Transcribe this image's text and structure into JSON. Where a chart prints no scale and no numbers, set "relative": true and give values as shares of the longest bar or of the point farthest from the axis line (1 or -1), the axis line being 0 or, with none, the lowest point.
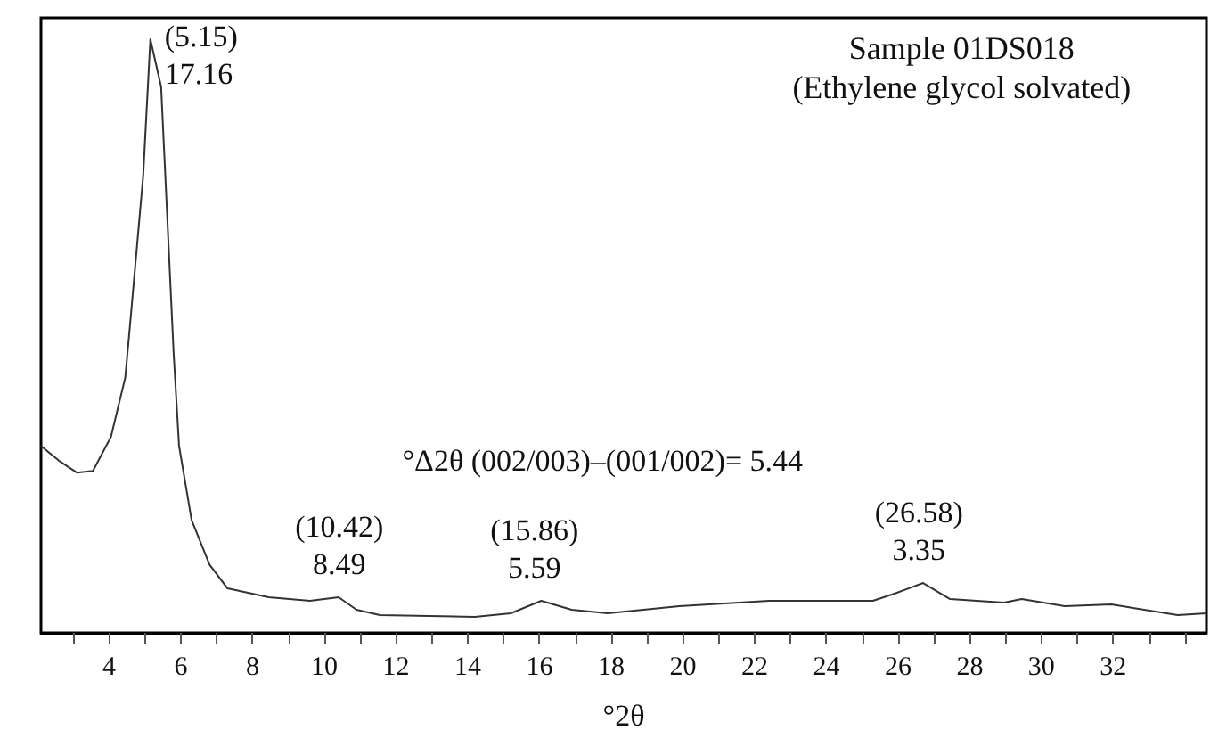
{
  "chart_data": {
    "type": "line",
    "title": "Sample 01DS018",
    "subtitle": "(Ethylene glycol solvated)",
    "xlabel": "°2θ",
    "relative": true,
    "x": [
      2.1,
      2.6,
      3.1,
      3.55,
      4.05,
      4.45,
      4.6,
      4.95,
      5.15,
      5.45,
      5.8,
      5.95,
      6.3,
      6.8,
      7.3,
      8.45,
      9.6,
      10.4,
      10.9,
      11.55,
      14.2,
      15.2,
      16.05,
      16.9,
      17.9,
      19.9,
      22.4,
      25.3,
      25.9,
      26.7,
      27.45,
      28.95,
      29.45,
      30.65,
      31.95,
      33.8,
      34.6
    ],
    "series": [
      {
        "color": "#333333",
        "values": [
          0.315,
          0.29,
          0.27,
          0.273,
          0.33,
          0.43,
          0.53,
          0.77,
          1,
          0.92,
          0.47,
          0.315,
          0.19,
          0.115,
          0.075,
          0.06,
          0.054,
          0.06,
          0.039,
          0.03,
          0.027,
          0.033,
          0.054,
          0.039,
          0.033,
          0.045,
          0.054,
          0.054,
          0.066,
          0.084,
          0.057,
          0.051,
          0.057,
          0.045,
          0.048,
          0.03,
          0.033
        ]
      }
    ],
    "xlim": [
      2.1,
      34.6
    ],
    "xticks": [
      {
        "value": 3,
        "label": null
      },
      4,
      {
        "value": 5,
        "label": null
      },
      6,
      {
        "value": 7,
        "label": null
      },
      8,
      {
        "value": 9,
        "label": null
      },
      10,
      {
        "value": 11,
        "label": null
      },
      12,
      {
        "value": 13,
        "label": null
      },
      14,
      {
        "value": 15,
        "label": null
      },
      16,
      {
        "value": 17,
        "label": null
      },
      18,
      {
        "value": 19,
        "label": null
      },
      20,
      {
        "value": 21,
        "label": null
      },
      22,
      {
        "value": 23,
        "label": null
      },
      24,
      {
        "value": 25,
        "label": null
      },
      26,
      {
        "value": 27,
        "label": null
      },
      28,
      {
        "value": 29,
        "label": null
      },
      30,
      {
        "value": 31,
        "label": null
      },
      32,
      {
        "value": 33,
        "label": null
      },
      {
        "value": 34,
        "label": null
      }
    ],
    "annotations": [
      {
        "text": "(5.15)\n17.16",
        "x": 5.15,
        "y": 1
      },
      {
        "text": "(10.42)\n8.49",
        "x": 10.42,
        "y": 0.06
      },
      {
        "text": "(15.86)\n5.59",
        "x": 15.86,
        "y": 0.054
      },
      {
        "text": "(26.58)\n3.35",
        "x": 26.58,
        "y": 0.084
      },
      "°Δ2θ (002/003)–(001/002)= 5.44"
    ],
    "grid": false,
    "marker": "none",
    "line_style": "solid"
  }
}
